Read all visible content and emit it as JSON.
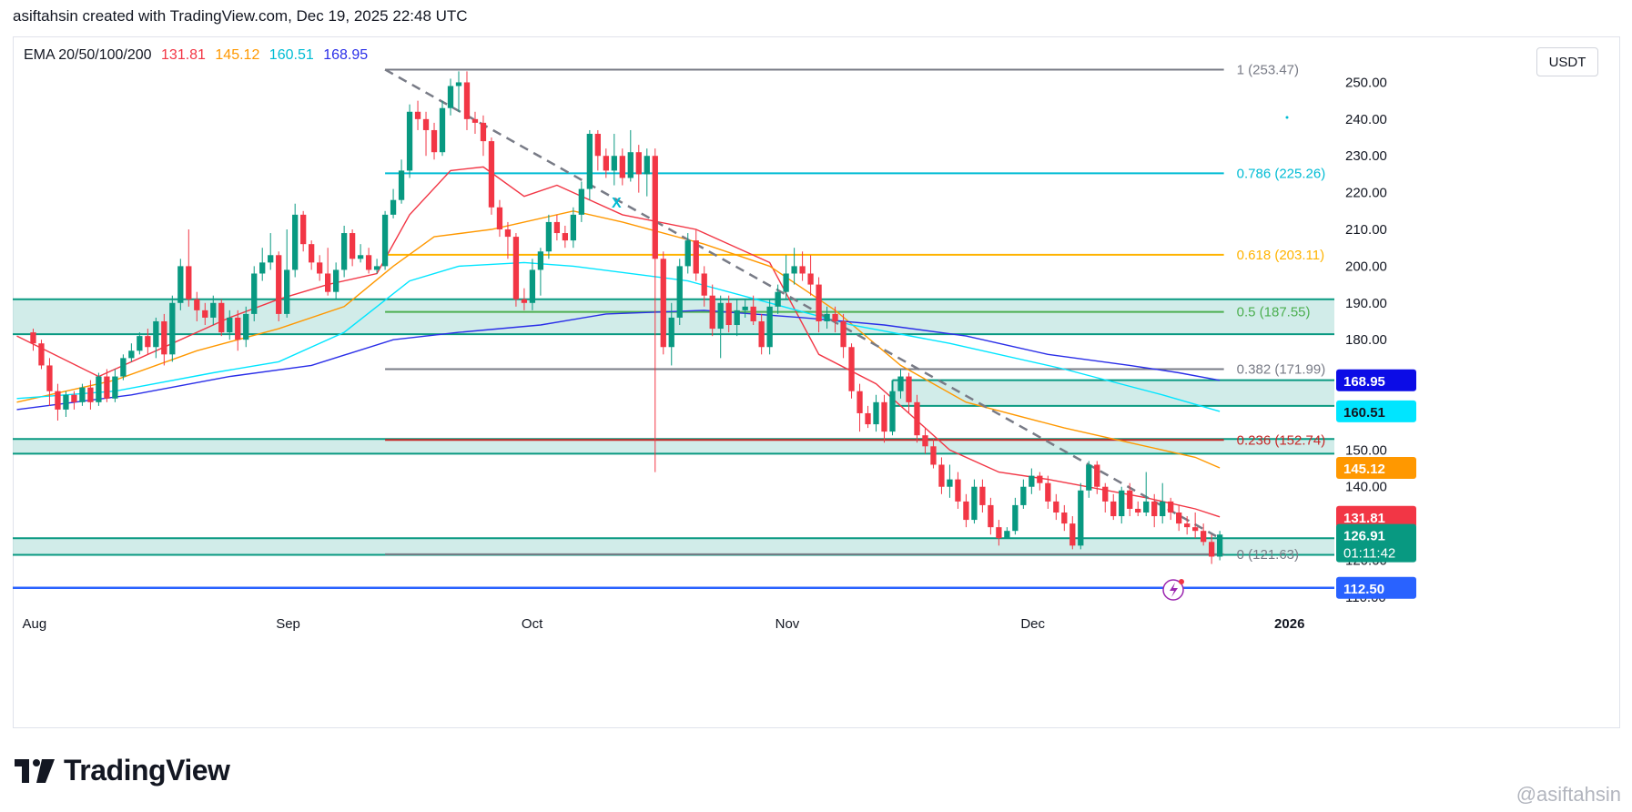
{
  "header": {
    "credit": "asiftahsin created with TradingView.com, Dec 19, 2025 22:48 UTC"
  },
  "legend": {
    "label": "EMA 20/50/100/200",
    "values": [
      {
        "text": "131.81",
        "color": "#f23645"
      },
      {
        "text": "145.12",
        "color": "#ff9800"
      },
      {
        "text": "160.51",
        "color": "#00e5ff"
      },
      {
        "text": "168.95",
        "color": "#2a2ee8"
      }
    ]
  },
  "currency": "USDT",
  "footer": {
    "brand": "TradingView",
    "watermark": "@asiftahsin"
  },
  "chart_data": {
    "type": "candlestick",
    "symbol_quote": "USDT",
    "ylim": [
      107,
      262
    ],
    "y_ticks": [
      "250.00",
      "240.00",
      "230.00",
      "220.00",
      "210.00",
      "200.00",
      "190.00",
      "180.00",
      "150.00",
      "140.00",
      "120.00",
      "110.00"
    ],
    "x_ticks": [
      {
        "label": "Aug",
        "day": 0
      },
      {
        "label": "Sep",
        "day": 31
      },
      {
        "label": "Oct",
        "day": 61
      },
      {
        "label": "Nov",
        "day": 92
      },
      {
        "label": "Dec",
        "day": 122
      },
      {
        "label": "2026",
        "day": 153
      }
    ],
    "x_range_days": [
      -2.5,
      159
    ],
    "candles": [
      [
        182,
        179,
        183,
        177
      ],
      [
        179,
        173,
        180,
        172
      ],
      [
        173,
        166,
        175,
        162
      ],
      [
        166,
        161,
        168,
        158
      ],
      [
        161,
        165,
        166,
        159
      ],
      [
        165,
        163,
        166,
        161
      ],
      [
        163,
        167,
        168,
        162
      ],
      [
        167,
        163,
        169,
        161
      ],
      [
        163,
        170,
        171,
        162
      ],
      [
        170,
        164,
        172,
        163
      ],
      [
        164,
        170,
        172,
        163
      ],
      [
        170,
        175,
        176,
        169
      ],
      [
        175,
        177,
        179,
        174
      ],
      [
        177,
        181,
        182,
        176
      ],
      [
        181,
        178,
        183,
        176
      ],
      [
        178,
        185,
        186,
        175
      ],
      [
        185,
        176,
        187,
        173
      ],
      [
        176,
        190,
        192,
        174
      ],
      [
        190,
        200,
        202,
        188
      ],
      [
        200,
        191,
        210,
        189
      ],
      [
        191,
        188,
        193,
        185
      ],
      [
        188,
        186,
        190,
        184
      ],
      [
        186,
        190,
        192,
        184
      ],
      [
        190,
        182,
        191,
        181
      ],
      [
        182,
        186,
        188,
        180
      ],
      [
        186,
        180,
        188,
        177
      ],
      [
        180,
        187,
        189,
        178
      ],
      [
        187,
        198,
        200,
        185
      ],
      [
        198,
        201,
        205,
        196
      ],
      [
        201,
        203,
        209,
        199
      ],
      [
        203,
        187,
        204,
        185
      ],
      [
        187,
        199,
        210,
        186
      ],
      [
        199,
        214,
        217,
        197
      ],
      [
        214,
        206,
        215,
        204
      ],
      [
        206,
        201,
        207,
        199
      ],
      [
        201,
        198,
        203,
        196
      ],
      [
        198,
        193,
        205,
        192
      ],
      [
        193,
        199,
        201,
        191
      ],
      [
        199,
        209,
        211,
        197
      ],
      [
        209,
        202,
        210,
        200
      ],
      [
        202,
        203,
        206,
        201
      ],
      [
        203,
        199,
        205,
        198
      ],
      [
        199,
        200,
        202,
        198
      ],
      [
        200,
        214,
        215,
        199
      ],
      [
        214,
        218,
        221,
        213
      ],
      [
        218,
        226,
        229,
        217
      ],
      [
        226,
        242,
        244,
        224
      ],
      [
        242,
        240,
        245,
        237
      ],
      [
        240,
        237,
        242,
        230
      ],
      [
        237,
        231,
        239,
        229
      ],
      [
        231,
        243,
        245,
        230
      ],
      [
        243,
        249,
        251,
        241
      ],
      [
        249,
        250,
        253,
        242
      ],
      [
        250,
        240,
        253,
        237
      ],
      [
        240,
        239,
        242,
        236
      ],
      [
        239,
        234,
        241,
        230
      ],
      [
        234,
        216,
        235,
        214
      ],
      [
        216,
        210,
        218,
        208
      ],
      [
        210,
        208,
        212,
        202
      ],
      [
        208,
        191,
        209,
        189
      ],
      [
        191,
        190,
        194,
        188
      ],
      [
        190,
        199,
        202,
        188
      ],
      [
        199,
        204,
        205,
        192
      ],
      [
        204,
        212,
        214,
        202
      ],
      [
        212,
        209,
        214,
        207
      ],
      [
        209,
        207,
        211,
        205
      ],
      [
        207,
        214,
        216,
        205
      ],
      [
        214,
        221,
        223,
        212
      ],
      [
        221,
        236,
        237,
        218
      ],
      [
        236,
        230,
        237,
        226
      ],
      [
        230,
        226,
        232,
        224
      ],
      [
        226,
        230,
        236,
        222
      ],
      [
        230,
        224,
        232,
        222
      ],
      [
        224,
        231,
        237,
        223
      ],
      [
        231,
        225,
        233,
        220
      ],
      [
        225,
        230,
        232,
        219
      ],
      [
        230,
        202,
        232,
        144
      ],
      [
        202,
        178,
        204,
        176
      ],
      [
        178,
        186,
        190,
        173
      ],
      [
        186,
        200,
        202,
        184
      ],
      [
        200,
        207,
        209,
        198
      ],
      [
        207,
        198,
        210,
        196
      ],
      [
        198,
        192,
        200,
        189
      ],
      [
        192,
        183,
        195,
        181
      ],
      [
        183,
        190,
        192,
        175
      ],
      [
        190,
        184,
        192,
        182
      ],
      [
        184,
        188,
        191,
        181
      ],
      [
        188,
        189,
        191,
        186
      ],
      [
        189,
        185,
        192,
        184
      ],
      [
        185,
        178,
        187,
        176
      ],
      [
        178,
        189,
        191,
        176
      ],
      [
        189,
        193,
        195,
        187
      ],
      [
        193,
        198,
        203,
        191
      ],
      [
        198,
        200,
        205,
        195
      ],
      [
        200,
        198,
        204,
        196
      ],
      [
        198,
        195,
        203,
        192
      ],
      [
        195,
        185,
        197,
        182
      ],
      [
        185,
        187,
        189,
        183
      ],
      [
        187,
        185,
        189,
        182
      ],
      [
        185,
        178,
        187,
        175
      ],
      [
        178,
        166,
        179,
        164
      ],
      [
        166,
        160,
        168,
        155
      ],
      [
        160,
        157,
        162,
        156
      ],
      [
        157,
        163,
        165,
        155
      ],
      [
        163,
        155,
        165,
        152
      ],
      [
        155,
        166,
        168,
        154
      ],
      [
        166,
        170,
        172,
        164
      ],
      [
        170,
        163,
        171,
        160
      ],
      [
        163,
        154,
        165,
        152
      ],
      [
        154,
        151,
        156,
        149
      ],
      [
        151,
        146,
        153,
        145
      ],
      [
        146,
        140,
        148,
        138
      ],
      [
        140,
        142,
        146,
        137
      ],
      [
        142,
        136,
        144,
        134
      ],
      [
        136,
        131,
        138,
        129
      ],
      [
        131,
        140,
        142,
        130
      ],
      [
        140,
        135,
        142,
        133
      ],
      [
        135,
        129,
        137,
        127
      ],
      [
        129,
        126,
        131,
        124
      ],
      [
        126,
        128,
        129,
        126
      ],
      [
        128,
        135,
        137,
        127
      ],
      [
        135,
        140,
        142,
        134
      ],
      [
        140,
        143,
        145,
        138
      ],
      [
        143,
        141,
        144,
        139
      ],
      [
        141,
        136,
        143,
        134
      ],
      [
        136,
        133,
        138,
        131
      ],
      [
        133,
        130,
        135,
        128
      ],
      [
        130,
        124,
        132,
        123
      ],
      [
        124,
        139,
        141,
        123
      ],
      [
        139,
        146,
        147,
        137
      ],
      [
        146,
        140,
        147,
        138
      ],
      [
        140,
        136,
        141,
        133
      ],
      [
        136,
        132,
        138,
        131
      ],
      [
        132,
        139,
        140,
        130
      ],
      [
        139,
        134,
        141,
        132
      ],
      [
        134,
        133,
        136,
        132
      ],
      [
        133,
        136,
        144,
        132
      ],
      [
        136,
        132,
        138,
        129
      ],
      [
        132,
        136,
        141,
        130
      ],
      [
        136,
        133,
        137,
        131
      ],
      [
        133,
        130,
        135,
        128
      ],
      [
        130,
        129,
        132,
        127
      ],
      [
        129,
        128,
        133,
        126
      ],
      [
        128,
        125,
        130,
        124
      ],
      [
        125,
        121,
        127,
        119
      ],
      [
        121,
        127,
        128,
        120
      ]
    ],
    "ema": [
      {
        "period": 20,
        "color": "#f23645",
        "points": [
          [
            -2,
            181
          ],
          [
            8,
            170
          ],
          [
            16,
            178
          ],
          [
            24,
            186
          ],
          [
            30,
            191
          ],
          [
            36,
            195
          ],
          [
            42,
            198
          ],
          [
            46,
            214
          ],
          [
            51,
            226
          ],
          [
            55,
            227
          ],
          [
            60,
            219
          ],
          [
            64,
            222
          ],
          [
            72,
            214
          ],
          [
            81,
            210
          ],
          [
            90,
            201
          ],
          [
            96,
            176
          ],
          [
            103,
            168
          ],
          [
            112,
            150
          ],
          [
            118,
            144
          ],
          [
            124,
            142
          ],
          [
            136,
            137
          ],
          [
            142,
            134
          ],
          [
            145,
            131.81
          ]
        ]
      },
      {
        "period": 50,
        "color": "#ff9800",
        "points": [
          [
            -2,
            163
          ],
          [
            10,
            169
          ],
          [
            20,
            177
          ],
          [
            30,
            183
          ],
          [
            38,
            189
          ],
          [
            44,
            200
          ],
          [
            49,
            208
          ],
          [
            56,
            210
          ],
          [
            66,
            215
          ],
          [
            72,
            212
          ],
          [
            82,
            206
          ],
          [
            90,
            200
          ],
          [
            98,
            188
          ],
          [
            106,
            173
          ],
          [
            114,
            163
          ],
          [
            126,
            156
          ],
          [
            134,
            152
          ],
          [
            142,
            148
          ],
          [
            145,
            145.12
          ]
        ]
      },
      {
        "period": 100,
        "color": "#00e5ff",
        "points": [
          [
            -2,
            164
          ],
          [
            10,
            166
          ],
          [
            22,
            171
          ],
          [
            30,
            174
          ],
          [
            38,
            182
          ],
          [
            46,
            196
          ],
          [
            52,
            200
          ],
          [
            60,
            201
          ],
          [
            66,
            200
          ],
          [
            80,
            196
          ],
          [
            90,
            190
          ],
          [
            100,
            184
          ],
          [
            112,
            179
          ],
          [
            126,
            172
          ],
          [
            138,
            165
          ],
          [
            145,
            160.51
          ]
        ]
      },
      {
        "period": 200,
        "color": "#2a2ee8",
        "points": [
          [
            -2,
            161
          ],
          [
            12,
            165
          ],
          [
            24,
            170
          ],
          [
            34,
            173
          ],
          [
            44,
            180
          ],
          [
            52,
            182
          ],
          [
            62,
            184
          ],
          [
            70,
            187
          ],
          [
            82,
            188
          ],
          [
            94,
            186
          ],
          [
            104,
            184
          ],
          [
            114,
            181
          ],
          [
            124,
            176
          ],
          [
            134,
            173
          ],
          [
            140,
            171
          ],
          [
            145,
            168.95
          ]
        ]
      }
    ],
    "fib_levels": [
      {
        "label": "1 (253.47)",
        "value": 253.47,
        "color": "#787b86"
      },
      {
        "label": "0.786 (225.26)",
        "value": 225.26,
        "color": "#00bcd4"
      },
      {
        "label": "0.618 (203.11)",
        "value": 203.11,
        "color": "#ffb300"
      },
      {
        "label": "0.5 (187.55)",
        "value": 187.55,
        "color": "#4caf50"
      },
      {
        "label": "0.382 (171.99)",
        "value": 171.99,
        "color": "#787b86"
      },
      {
        "label": "0.236 (152.74)",
        "value": 152.74,
        "color": "#c62828"
      },
      {
        "label": "0 (121.63)",
        "value": 121.63,
        "color": "#787b86"
      }
    ],
    "fib_start_day": 43,
    "zones": [
      {
        "from": 181.5,
        "to": 191,
        "start_day": -2.5
      },
      {
        "from": 162,
        "to": 169,
        "start_day": 105
      },
      {
        "from": 149,
        "to": 153,
        "start_day": -2.5
      },
      {
        "from": 121.5,
        "to": 126,
        "start_day": -2.5
      }
    ],
    "support_line": {
      "value": 112.5,
      "color": "#2962ff"
    },
    "trendline": {
      "start": [
        43,
        253.47
      ],
      "end": [
        145,
        126
      ]
    },
    "price_labels": [
      {
        "text": "168.95",
        "value": 168.95,
        "bg": "#0c0ce6",
        "fg": "#ffffff"
      },
      {
        "text": "160.51",
        "value": 160.51,
        "bg": "#00e5ff",
        "fg": "#131722"
      },
      {
        "text": "145.12",
        "value": 145.12,
        "bg": "#ff9800",
        "fg": "#ffffff"
      },
      {
        "text": "131.81",
        "value": 131.81,
        "bg": "#f23645",
        "fg": "#ffffff"
      },
      {
        "text": "126.91",
        "subtext": "01:11:42",
        "value": 126.91,
        "bg": "#089981",
        "fg": "#ffffff"
      },
      {
        "text": "112.50",
        "value": 112.5,
        "bg": "#2962ff",
        "fg": "#ffffff"
      }
    ],
    "up_color": "#089981",
    "down_color": "#f23645"
  }
}
